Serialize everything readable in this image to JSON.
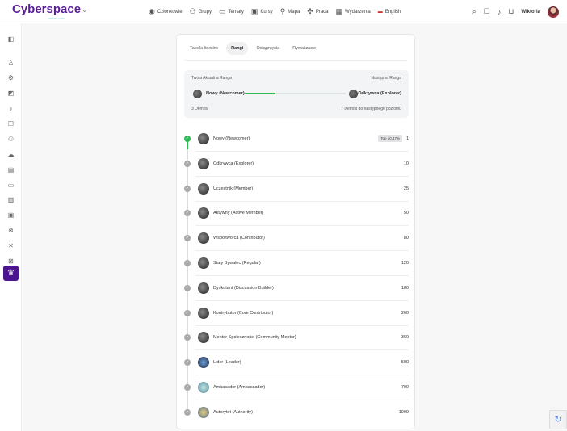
{
  "header": {
    "logo": "Cyberspace",
    "logo_sub": "PORTAL.COM",
    "nav": [
      {
        "icon": "user-circle-icon",
        "label": "Członkowie"
      },
      {
        "icon": "users-icon",
        "label": "Grupy"
      },
      {
        "icon": "chat-icon",
        "label": "Tematy"
      },
      {
        "icon": "course-icon",
        "label": "Kursy"
      },
      {
        "icon": "map-pin-icon",
        "label": "Mapa"
      },
      {
        "icon": "briefcase-icon",
        "label": "Praca"
      },
      {
        "icon": "calendar-icon",
        "label": "Wydarzenia"
      },
      {
        "icon": "flag-icon",
        "label": "English"
      }
    ],
    "user": "Wiktoria"
  },
  "tabs": [
    "Tabela liderów",
    "Rangi",
    "Osiągnięcia",
    "Rywalizacje"
  ],
  "active_tab": "Rangi",
  "current": {
    "label": "Twoja Aktualna Ranga",
    "next_label": "Następna Ranga",
    "rank": "Nowy (Newcomer)",
    "next_rank": "Odkrywca (Explorer)",
    "points": "3 Demos",
    "remaining": "7 Demos do następnego poziomu",
    "progress_percent": 30
  },
  "ranks": [
    {
      "name": "Nowy (Newcomer)",
      "points": "1",
      "top": "Top 10.47%",
      "achieved": true
    },
    {
      "name": "Odkrywca (Explorer)",
      "points": "10"
    },
    {
      "name": "Uczestnik (Member)",
      "points": "25"
    },
    {
      "name": "Aktywny (Active Member)",
      "points": "50"
    },
    {
      "name": "Współtwórca (Contributor)",
      "points": "80"
    },
    {
      "name": "Stały Bywalec (Regular)",
      "points": "120"
    },
    {
      "name": "Dyskutant (Discussion Builder)",
      "points": "180"
    },
    {
      "name": "Kontrybutor (Core Contributor)",
      "points": "260"
    },
    {
      "name": "Mentor Społeczności (Community Mentor)",
      "points": "360"
    },
    {
      "name": "Lider (Leader)",
      "points": "500"
    },
    {
      "name": "Ambasador (Ambassador)",
      "points": "700"
    },
    {
      "name": "Autorytet (Authority)",
      "points": "1000"
    }
  ],
  "colors": {
    "brand": "#5a1e9a",
    "progress": "#2ebb55",
    "sidebar_active": "#4b1590"
  }
}
